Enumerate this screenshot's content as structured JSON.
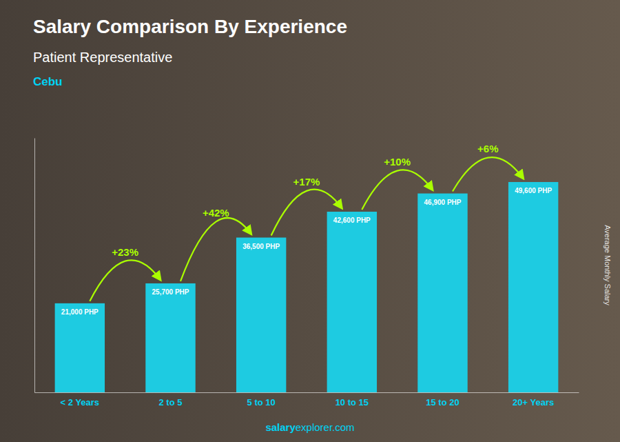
{
  "chart_data": {
    "type": "bar",
    "title": "Salary Comparison By Experience",
    "subtitle": "Patient Representative",
    "city": "Cebu",
    "ylabel": "Average Monthly Salary",
    "categories": [
      "< 2 Years",
      "2 to 5",
      "5 to 10",
      "10 to 15",
      "15 to 20",
      "20+ Years"
    ],
    "values": [
      21000,
      25700,
      36500,
      42600,
      46900,
      49600
    ],
    "value_labels": [
      "21,000 PHP",
      "25,700 PHP",
      "36,500 PHP",
      "42,600 PHP",
      "46,900 PHP",
      "49,600 PHP"
    ],
    "annotations": [
      "+23%",
      "+42%",
      "+17%",
      "+10%",
      "+6%"
    ],
    "footer": [
      "salary",
      "explorer.com"
    ],
    "color": "#1ecbe1",
    "ylim": [
      0,
      60000
    ],
    "grid": false,
    "data_labels": true,
    "tick_labels": "x"
  }
}
